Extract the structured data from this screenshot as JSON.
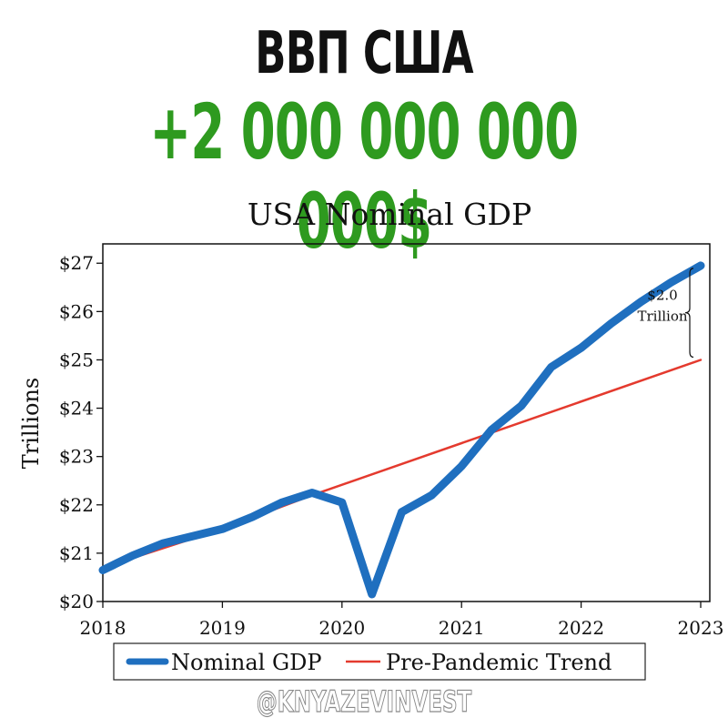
{
  "headline": {
    "title": "ВВП США",
    "amount": "+2 000 000 000 000$",
    "plus_color": "#2e9a1f",
    "amount_color": "#2e9a1f"
  },
  "chart_data": {
    "type": "line",
    "title": "USA Nominal GDP",
    "ylabel": "Trillions",
    "xlabel": "",
    "xlim": [
      2018,
      2023
    ],
    "ylim": [
      20,
      27.4
    ],
    "x_ticks": [
      2018,
      2019,
      2020,
      2021,
      2022,
      2023
    ],
    "x_tick_labels": [
      "2018",
      "2019",
      "2020",
      "2021",
      "2022",
      "2023"
    ],
    "y_ticks": [
      20,
      21,
      22,
      23,
      24,
      25,
      26,
      27
    ],
    "y_tick_labels": [
      "$20",
      "$21",
      "$22",
      "$23",
      "$24",
      "$25",
      "$26",
      "$27"
    ],
    "grid": false,
    "legend_position": "bottom",
    "series": [
      {
        "name": "Nominal GDP",
        "color": "#1f6fbf",
        "x": [
          2018.0,
          2018.25,
          2018.5,
          2018.75,
          2019.0,
          2019.25,
          2019.5,
          2019.75,
          2020.0,
          2020.25,
          2020.5,
          2020.75,
          2021.0,
          2021.25,
          2021.5,
          2021.75,
          2022.0,
          2022.25,
          2022.5,
          2022.75,
          2023.0
        ],
        "y": [
          20.65,
          20.95,
          21.2,
          21.35,
          21.5,
          21.75,
          22.05,
          22.25,
          22.05,
          20.15,
          21.85,
          22.2,
          22.8,
          23.55,
          24.05,
          24.85,
          25.25,
          25.75,
          26.2,
          26.6,
          26.95
        ]
      },
      {
        "name": "Pre-Pandemic Trend",
        "color": "#e43a2e",
        "x": [
          2018.0,
          2019.0,
          2019.75,
          2023.0
        ],
        "y": [
          20.7,
          21.5,
          22.2,
          25.0
        ]
      }
    ],
    "annotation": {
      "lines": [
        "$2.0",
        "Trillion"
      ],
      "x": 2023.0,
      "y_from": 25.0,
      "y_to": 26.95
    }
  },
  "watermark": "@KNYAZEVINVEST"
}
